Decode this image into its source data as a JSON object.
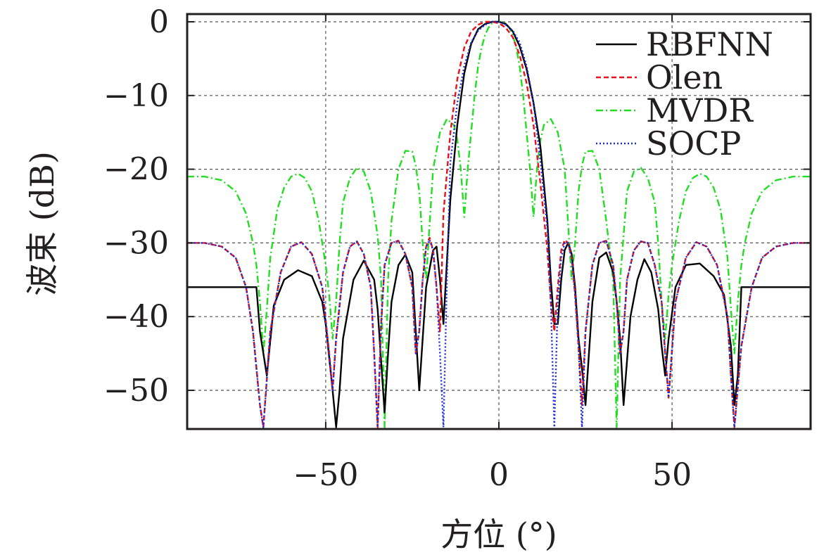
{
  "chart_data": {
    "type": "line",
    "xlabel": "方位 (°)",
    "ylabel": "波束 (dB)",
    "xlim": [
      -90,
      90
    ],
    "ylim": [
      -55,
      0
    ],
    "xticks": [
      -50,
      0,
      50
    ],
    "xtick_labels": [
      "−50",
      "0",
      "50"
    ],
    "yticks": [
      0,
      -10,
      -20,
      -30,
      -40,
      -50
    ],
    "ytick_labels": [
      "0",
      "−10",
      "−20",
      "−30",
      "−40",
      "−50"
    ],
    "grid": true,
    "legend_position": "top-right",
    "series": [
      {
        "name": "RBFNN",
        "color": "#000000",
        "style": "solid",
        "x": [
          -90,
          -70,
          -69,
          -67,
          -65,
          -62,
          -58,
          -54,
          -51,
          -50,
          -48,
          -47,
          -46,
          -45,
          -42,
          -39,
          -36,
          -35,
          -34,
          -33,
          -32,
          -31,
          -29,
          -27,
          -25,
          -24,
          -23,
          -21,
          -19,
          -18,
          -17,
          -16,
          -14,
          -12,
          -10,
          -8,
          -6,
          -4,
          -2,
          0,
          2,
          4,
          6,
          8,
          10,
          12,
          14,
          15,
          16,
          17,
          18,
          19,
          20,
          21,
          22,
          23,
          24,
          25,
          27,
          29,
          31,
          33,
          34,
          35,
          36,
          38,
          40,
          42,
          44,
          46,
          47,
          48,
          49,
          51,
          54,
          58,
          62,
          65,
          67,
          68,
          69,
          70,
          90
        ],
        "values": [
          -36,
          -36,
          -42,
          -48,
          -38.5,
          -35,
          -33.7,
          -34.5,
          -38,
          -41,
          -50,
          -55,
          -50,
          -43,
          -35,
          -32.4,
          -35,
          -39,
          -46,
          -53,
          -45,
          -38,
          -33,
          -31.6,
          -34,
          -42,
          -50,
          -36,
          -31,
          -30.5,
          -35,
          -41,
          -24,
          -14,
          -7,
          -3,
          -1,
          -0.3,
          0,
          0,
          -0.3,
          -1.3,
          -3.3,
          -6.4,
          -11,
          -17,
          -27,
          -35,
          -41,
          -41,
          -35,
          -31,
          -30,
          -31.5,
          -36,
          -43,
          -47,
          -52,
          -38,
          -32,
          -31.3,
          -34,
          -38,
          -43,
          -52,
          -40,
          -35,
          -32.2,
          -34,
          -39,
          -44,
          -48,
          -43,
          -36,
          -33,
          -32.8,
          -34.5,
          -37,
          -44,
          -52,
          -48,
          -36,
          -36
        ]
      },
      {
        "name": "Olen",
        "color": "#e8101a",
        "style": "dashed",
        "x": [
          -90,
          -85,
          -80,
          -76,
          -73,
          -71,
          -69,
          -68,
          -66,
          -63,
          -60,
          -57,
          -54,
          -51,
          -49,
          -48,
          -47,
          -45,
          -43,
          -41,
          -39,
          -37,
          -36,
          -35,
          -34,
          -33,
          -31,
          -29,
          -27,
          -25,
          -24,
          -23,
          -22,
          -21,
          -20,
          -19,
          -18,
          -17,
          -16,
          -14,
          -12,
          -10,
          -8,
          -6,
          -4,
          -2,
          0,
          2,
          4,
          6,
          8,
          10,
          12,
          14,
          15,
          16,
          17,
          18,
          19,
          20,
          21,
          22,
          23,
          24,
          25,
          27,
          29,
          31,
          33,
          34,
          35,
          36,
          37,
          39,
          41,
          43,
          45,
          47,
          48,
          49,
          51,
          54,
          57,
          60,
          63,
          66,
          67,
          68,
          70,
          73,
          76,
          80,
          85,
          90
        ],
        "values": [
          -30,
          -30,
          -30.5,
          -32,
          -36,
          -42,
          -52,
          -55,
          -42,
          -34,
          -30.5,
          -29.9,
          -31.5,
          -36,
          -45,
          -50,
          -43,
          -34,
          -30.5,
          -29.8,
          -31.5,
          -36,
          -45,
          -55,
          -41,
          -33,
          -30,
          -29.7,
          -31.5,
          -36,
          -45,
          -42,
          -35,
          -30.5,
          -29.3,
          -31,
          -36,
          -42,
          -26,
          -15,
          -7.8,
          -3.5,
          -1.3,
          -0.4,
          0,
          0,
          -0.2,
          -0.8,
          -2.1,
          -4.5,
          -8.3,
          -14,
          -22,
          -31,
          -38,
          -42,
          -36,
          -31,
          -29.6,
          -30,
          -32,
          -37,
          -44,
          -52,
          -42,
          -33,
          -30,
          -29.7,
          -33,
          -38,
          -45,
          -42,
          -35,
          -31,
          -29.8,
          -30,
          -33,
          -38,
          -45,
          -51,
          -38,
          -32,
          -29.9,
          -30.5,
          -33,
          -40,
          -48,
          -55,
          -44,
          -36,
          -32,
          -30.5,
          -30,
          -30
        ]
      },
      {
        "name": "MVDR",
        "color": "#22dd22",
        "style": "dashdot",
        "x": [
          -90,
          -85,
          -80,
          -76,
          -73,
          -71,
          -70,
          -69,
          -68,
          -67,
          -66,
          -64,
          -62,
          -60,
          -58,
          -56,
          -54,
          -52,
          -50,
          -49,
          -48,
          -47,
          -46,
          -45,
          -43,
          -41,
          -39,
          -37,
          -35,
          -34,
          -33,
          -32,
          -31,
          -29,
          -27,
          -25,
          -24,
          -23,
          -22,
          -21,
          -19,
          -17,
          -15,
          -13,
          -12,
          -11,
          -10,
          -9,
          -8,
          -7,
          -6,
          -5,
          -4,
          -3,
          -2,
          -1,
          0,
          1,
          2,
          3,
          4,
          5,
          6,
          7,
          8,
          9,
          10,
          11,
          12,
          13,
          15,
          17,
          19,
          21,
          22,
          23,
          24,
          25,
          27,
          29,
          31,
          33,
          34,
          35,
          36,
          37,
          39,
          41,
          43,
          45,
          46,
          47,
          48,
          49,
          50,
          52,
          54,
          56,
          58,
          60,
          62,
          64,
          66,
          67,
          68,
          69,
          70,
          71,
          73,
          76,
          80,
          85,
          90
        ],
        "values": [
          -21,
          -21,
          -21.5,
          -23,
          -26,
          -30,
          -33,
          -38,
          -45,
          -39,
          -32,
          -25.5,
          -22.5,
          -21,
          -20.6,
          -21.2,
          -23,
          -27,
          -33,
          -37,
          -43,
          -38,
          -30,
          -24.5,
          -21.2,
          -19.8,
          -20.3,
          -23,
          -29,
          -35,
          -55,
          -35,
          -27,
          -20,
          -17.5,
          -17.6,
          -19.5,
          -23,
          -30,
          -35,
          -20,
          -15,
          -13.2,
          -14,
          -16,
          -20,
          -26.5,
          -20,
          -15,
          -10,
          -6,
          -3.5,
          -1.8,
          -0.8,
          -0.2,
          0,
          0,
          0,
          -0.2,
          -0.8,
          -1.8,
          -3.5,
          -6,
          -10,
          -15,
          -20,
          -26.5,
          -20,
          -16,
          -14,
          -13.2,
          -15,
          -20,
          -35,
          -30,
          -23,
          -19.5,
          -17.6,
          -17.5,
          -20,
          -27,
          -35,
          -55,
          -35,
          -29,
          -23,
          -20.3,
          -19.8,
          -21.2,
          -24.5,
          -30,
          -38,
          -43,
          -37,
          -33,
          -27,
          -23,
          -21.2,
          -20.6,
          -21,
          -22.5,
          -25.5,
          -32,
          -39,
          -45,
          -38,
          -33,
          -30,
          -26,
          -23,
          -21.5,
          -21,
          -21
        ]
      },
      {
        "name": "SOCP",
        "color": "#1a2ad6",
        "style": "dotted",
        "x": [
          -90,
          -85,
          -80,
          -76,
          -73,
          -71,
          -69,
          -68,
          -66,
          -63,
          -60,
          -57,
          -54,
          -51,
          -49,
          -48,
          -47,
          -45,
          -43,
          -41,
          -39,
          -37,
          -36,
          -35,
          -34,
          -33,
          -31,
          -29,
          -27,
          -25,
          -24,
          -23,
          -22,
          -21,
          -20,
          -19,
          -18,
          -17,
          -16,
          -15,
          -14,
          -12,
          -10,
          -8,
          -6,
          -4,
          -2,
          0,
          2,
          4,
          6,
          8,
          10,
          12,
          14,
          15,
          16,
          17,
          18,
          19,
          20,
          21,
          22,
          23,
          24,
          25,
          27,
          29,
          31,
          33,
          34,
          35,
          36,
          37,
          39,
          41,
          43,
          45,
          47,
          48,
          49,
          51,
          54,
          57,
          60,
          63,
          66,
          67,
          68,
          70,
          73,
          76,
          80,
          85,
          90
        ],
        "values": [
          -30,
          -30,
          -30.5,
          -32,
          -36,
          -42,
          -52,
          -55,
          -42,
          -34,
          -30.5,
          -29.9,
          -31.5,
          -36,
          -45,
          -50,
          -43,
          -34,
          -30.5,
          -29.8,
          -31.5,
          -36,
          -45,
          -55,
          -41,
          -33,
          -30,
          -29.7,
          -31.5,
          -36,
          -45,
          -42,
          -35,
          -30.5,
          -29.6,
          -31,
          -36,
          -45,
          -55,
          -35,
          -19,
          -11,
          -6,
          -2.8,
          -1.2,
          -0.4,
          0,
          0,
          -0.4,
          -1.2,
          -2.8,
          -6,
          -11,
          -19,
          -28,
          -38,
          -55,
          -38,
          -32,
          -30,
          -30,
          -32,
          -37,
          -44,
          -55,
          -42,
          -33,
          -30,
          -29.7,
          -33,
          -38,
          -45,
          -42,
          -35,
          -31,
          -29.8,
          -30,
          -33,
          -38,
          -45,
          -51,
          -38,
          -32,
          -29.9,
          -30.5,
          -33,
          -40,
          -48,
          -55,
          -44,
          -36,
          -32,
          -30.5,
          -30,
          -30
        ]
      }
    ]
  }
}
